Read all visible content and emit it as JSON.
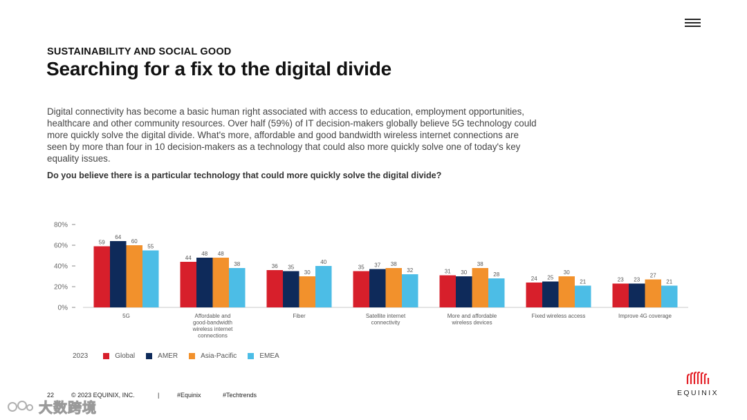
{
  "header": {
    "menu_icon": "hamburger-menu-icon",
    "section_label": "SUSTAINABILITY AND SOCIAL GOOD",
    "title": "Searching for a fix to the digital divide"
  },
  "body": {
    "intro": "Digital connectivity has become a basic human right associated with access to education, employment opportunities, healthcare and other community resources. Over half (59%) of IT decision-makers globally believe 5G technology could more quickly solve the digital divide. What's more, affordable and good bandwidth wireless internet connections are seen by more than four in 10 decision-makers as a technology that could also more quickly solve one of today's key equality issues.",
    "question": "Do you believe there is a particular technology that could more quickly solve the digital divide?"
  },
  "chart_data": {
    "type": "bar",
    "title": "",
    "xlabel": "",
    "ylabel": "",
    "ylim": [
      0,
      80
    ],
    "yticks": [
      "80%",
      "60%",
      "40%",
      "20%",
      "0%"
    ],
    "grid": false,
    "legend_position": "bottom-left",
    "legend_title": "2023",
    "categories": [
      [
        "5G"
      ],
      [
        "Affordable and",
        "good-bandwidth",
        "wireless internet",
        "connections"
      ],
      [
        "Fiber"
      ],
      [
        "Satellite internet",
        "connectivity"
      ],
      [
        "More and affordable",
        "wireless devices"
      ],
      [
        "Fixed wireless access"
      ],
      [
        "Improve 4G coverage"
      ]
    ],
    "series": [
      {
        "name": "Global",
        "color": "#d71f2b",
        "values": [
          59,
          44,
          36,
          35,
          31,
          24,
          23
        ]
      },
      {
        "name": "AMER",
        "color": "#0e2a5a",
        "values": [
          64,
          48,
          35,
          37,
          30,
          25,
          23
        ]
      },
      {
        "name": "Asia-Pacific",
        "color": "#f2912c",
        "values": [
          60,
          48,
          30,
          38,
          38,
          30,
          27
        ]
      },
      {
        "name": "EMEA",
        "color": "#4cbde6",
        "values": [
          55,
          38,
          40,
          32,
          28,
          21,
          21
        ]
      }
    ]
  },
  "footer": {
    "page": "22",
    "copyright": "© 2023 EQUINIX, INC.",
    "separator": "|",
    "tag1": "#Equinix",
    "tag2": "#Techtrends"
  },
  "logo": {
    "text": "EQUINIX",
    "icon": "equinix-logo-icon",
    "color": "#e31f26"
  },
  "watermark": {
    "text": "大数跨境",
    "icon": "watermark-logo-icon"
  }
}
